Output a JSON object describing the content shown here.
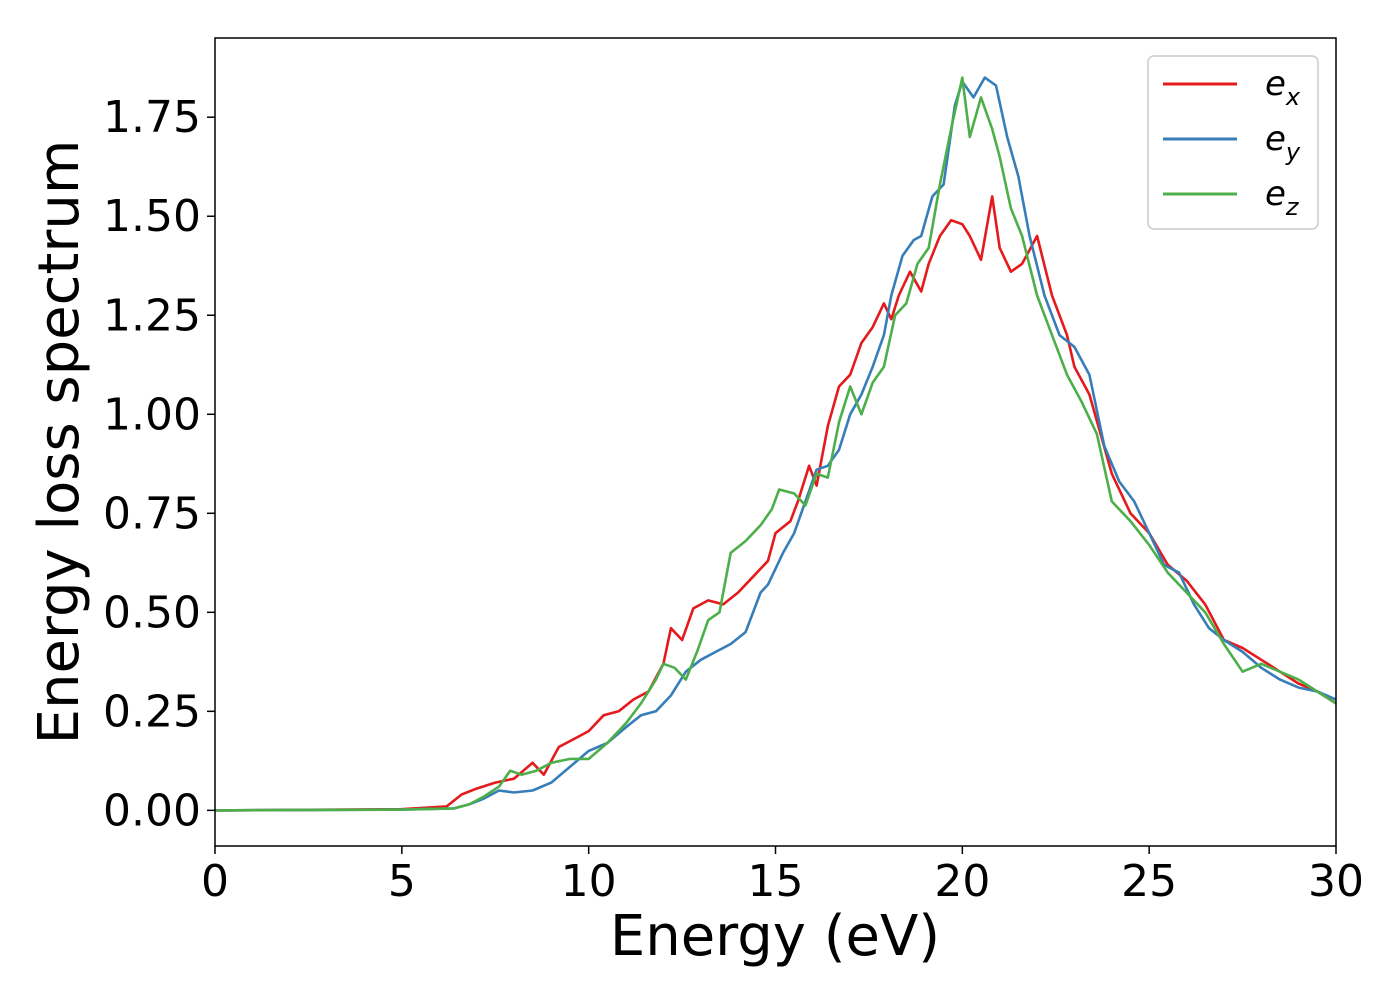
{
  "chart_data": {
    "type": "line",
    "title": "",
    "xlabel": "Energy (eV)",
    "ylabel": "Energy loss spectrum",
    "xlim": [
      0,
      30
    ],
    "ylim": [
      -0.09,
      1.95
    ],
    "xticks": [
      0,
      5,
      10,
      15,
      20,
      25,
      30
    ],
    "xtick_labels": [
      "0",
      "5",
      "10",
      "15",
      "20",
      "25",
      "30"
    ],
    "yticks": [
      0.0,
      0.25,
      0.5,
      0.75,
      1.0,
      1.25,
      1.5,
      1.75
    ],
    "ytick_labels": [
      "0.00",
      "0.25",
      "0.50",
      "0.75",
      "1.00",
      "1.25",
      "1.50",
      "1.75"
    ],
    "grid": false,
    "legend_position": "top-right",
    "series": [
      {
        "name": "e_x",
        "label_base": "e",
        "label_sub": "x",
        "color": "#e41a1c",
        "x": [
          0,
          5,
          6.2,
          6.6,
          7.0,
          7.5,
          8.0,
          8.5,
          8.8,
          9.2,
          9.6,
          10.0,
          10.4,
          10.8,
          11.2,
          11.6,
          12.0,
          12.2,
          12.5,
          12.8,
          13.2,
          13.6,
          14.0,
          14.4,
          14.8,
          15.0,
          15.4,
          15.6,
          15.9,
          16.1,
          16.4,
          16.7,
          17.0,
          17.3,
          17.6,
          17.9,
          18.1,
          18.3,
          18.6,
          18.9,
          19.1,
          19.4,
          19.7,
          20.0,
          20.2,
          20.5,
          20.8,
          21.0,
          21.3,
          21.6,
          22.0,
          22.4,
          22.8,
          23.0,
          23.4,
          24.0,
          24.5,
          25.0,
          25.5,
          26.0,
          26.5,
          27.0,
          27.5,
          28.0,
          28.5,
          29.0,
          29.5,
          30.0
        ],
        "y": [
          0.0,
          0.003,
          0.01,
          0.04,
          0.055,
          0.07,
          0.08,
          0.12,
          0.09,
          0.16,
          0.18,
          0.2,
          0.24,
          0.25,
          0.28,
          0.3,
          0.37,
          0.46,
          0.43,
          0.51,
          0.53,
          0.52,
          0.55,
          0.59,
          0.63,
          0.7,
          0.73,
          0.78,
          0.87,
          0.82,
          0.97,
          1.07,
          1.1,
          1.18,
          1.22,
          1.28,
          1.24,
          1.3,
          1.36,
          1.31,
          1.38,
          1.45,
          1.49,
          1.48,
          1.45,
          1.39,
          1.55,
          1.42,
          1.36,
          1.38,
          1.45,
          1.3,
          1.2,
          1.12,
          1.05,
          0.85,
          0.75,
          0.7,
          0.62,
          0.58,
          0.52,
          0.43,
          0.41,
          0.38,
          0.35,
          0.32,
          0.3,
          0.27
        ]
      },
      {
        "name": "e_y",
        "label_base": "e",
        "label_sub": "y",
        "color": "#377eb8",
        "x": [
          0,
          5,
          6.4,
          6.8,
          7.2,
          7.6,
          8.0,
          8.5,
          9.0,
          9.5,
          10.0,
          10.5,
          11.0,
          11.4,
          11.8,
          12.2,
          12.6,
          13.0,
          13.4,
          13.8,
          14.2,
          14.6,
          14.8,
          15.2,
          15.5,
          15.8,
          16.1,
          16.4,
          16.7,
          17.0,
          17.3,
          17.6,
          17.9,
          18.1,
          18.4,
          18.7,
          18.9,
          19.2,
          19.5,
          19.8,
          20.0,
          20.3,
          20.6,
          20.9,
          21.2,
          21.5,
          21.8,
          22.2,
          22.6,
          23.0,
          23.4,
          23.8,
          24.2,
          24.6,
          25.0,
          25.4,
          25.8,
          26.2,
          26.6,
          27.0,
          27.5,
          28.0,
          28.5,
          29.0,
          29.5,
          30.0
        ],
        "y": [
          0.0,
          0.002,
          0.005,
          0.015,
          0.03,
          0.05,
          0.045,
          0.05,
          0.07,
          0.11,
          0.15,
          0.17,
          0.21,
          0.24,
          0.25,
          0.29,
          0.35,
          0.38,
          0.4,
          0.42,
          0.45,
          0.55,
          0.57,
          0.65,
          0.7,
          0.78,
          0.86,
          0.87,
          0.91,
          1.0,
          1.05,
          1.12,
          1.2,
          1.3,
          1.4,
          1.44,
          1.45,
          1.55,
          1.58,
          1.78,
          1.84,
          1.8,
          1.85,
          1.83,
          1.7,
          1.6,
          1.45,
          1.3,
          1.2,
          1.17,
          1.1,
          0.92,
          0.83,
          0.78,
          0.7,
          0.62,
          0.6,
          0.52,
          0.46,
          0.43,
          0.4,
          0.36,
          0.33,
          0.31,
          0.3,
          0.28
        ]
      },
      {
        "name": "e_z",
        "label_base": "e",
        "label_sub": "z",
        "color": "#4daf4a",
        "x": [
          0,
          5,
          6.4,
          6.8,
          7.2,
          7.6,
          7.9,
          8.2,
          8.6,
          9.0,
          9.5,
          10.0,
          10.5,
          11.0,
          11.4,
          11.8,
          12.0,
          12.3,
          12.6,
          12.9,
          13.2,
          13.5,
          13.8,
          14.2,
          14.6,
          14.9,
          15.1,
          15.5,
          15.8,
          16.1,
          16.4,
          16.7,
          17.0,
          17.3,
          17.6,
          17.9,
          18.2,
          18.5,
          18.8,
          19.1,
          19.4,
          19.7,
          20.0,
          20.2,
          20.5,
          20.8,
          21.0,
          21.3,
          21.6,
          22.0,
          22.4,
          22.8,
          23.2,
          23.6,
          24.0,
          24.5,
          25.0,
          25.5,
          26.0,
          26.5,
          27.0,
          27.5,
          28.0,
          28.5,
          29.0,
          29.5,
          30.0
        ],
        "y": [
          0.0,
          0.002,
          0.005,
          0.015,
          0.035,
          0.06,
          0.1,
          0.09,
          0.1,
          0.12,
          0.13,
          0.13,
          0.17,
          0.22,
          0.27,
          0.33,
          0.37,
          0.36,
          0.33,
          0.4,
          0.48,
          0.5,
          0.65,
          0.68,
          0.72,
          0.76,
          0.81,
          0.8,
          0.77,
          0.85,
          0.84,
          0.98,
          1.07,
          1.0,
          1.08,
          1.12,
          1.25,
          1.28,
          1.38,
          1.42,
          1.58,
          1.72,
          1.85,
          1.7,
          1.8,
          1.72,
          1.65,
          1.52,
          1.45,
          1.3,
          1.2,
          1.1,
          1.03,
          0.95,
          0.78,
          0.73,
          0.67,
          0.6,
          0.55,
          0.5,
          0.42,
          0.35,
          0.37,
          0.35,
          0.33,
          0.3,
          0.27
        ]
      }
    ]
  }
}
